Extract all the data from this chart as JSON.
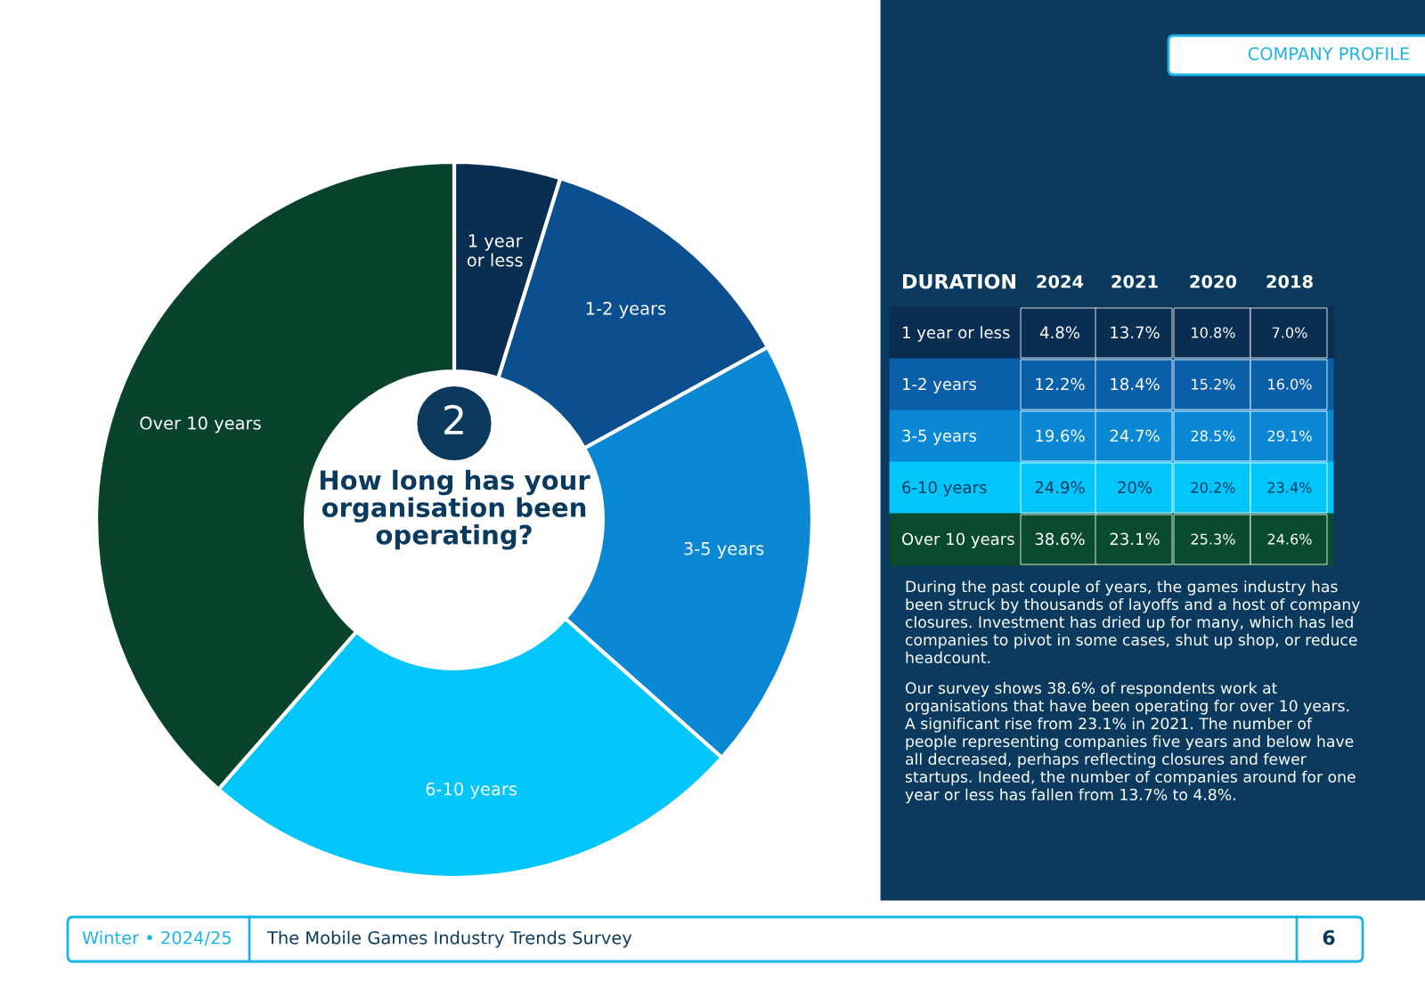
{
  "chart_data": [
    {
      "type": "donut",
      "title": "How long has your organisation been operating?",
      "subtitle": "2",
      "categories": [
        "1 year\nor less",
        "1-2 years",
        "3-5 years",
        "6-10 years",
        "Over 10 years"
      ],
      "values": [
        4.8,
        12.2,
        19.6,
        24.9,
        38.6
      ],
      "colors": [
        "#0a2d52",
        "#0b4f8f",
        "#0a88d4",
        "#00c6fb",
        "#0a432b"
      ],
      "annotations": [
        "COMPANY PROFILE",
        "Winter • 2024/25",
        "The Mobile Games Industry Trends Survey",
        "6"
      ]
    },
    {
      "type": "other",
      "title": "DURATION",
      "categories": [
        "1 year or less",
        "1-2 years",
        "3-5 years",
        "6-10 years",
        "Over 10 years"
      ],
      "colors": [
        "#0a2d52",
        "#0b5fa8",
        "#0a88d4",
        "#00c6fb",
        "#0a4a2e"
      ],
      "series": [
        {
          "name": "2024",
          "colors": [
            "#0a2d52",
            "#0b5fa8",
            "#0a88d4",
            "#00c6fb",
            "#0a4a2e"
          ],
          "values": [
            4.8,
            12.2,
            19.6,
            24.9,
            38.6
          ],
          "value_labels": [
            "4.8%",
            "12.2%",
            "19.6%",
            "24.9%",
            "38.6%"
          ]
        },
        {
          "name": "2021",
          "colors": [
            "#0a2d52",
            "#0b5fa8",
            "#0a88d4",
            "#00c6fb",
            "#0a4a2e"
          ],
          "values": [
            13.7,
            18.4,
            24.7,
            20,
            23.1
          ],
          "value_labels": [
            "13.7%",
            "18.4%",
            "24.7%",
            "20%",
            "23.1%"
          ]
        },
        {
          "name": "2020",
          "colors": [
            "#0a2d52",
            "#0b5fa8",
            "#0a88d4",
            "#00c6fb",
            "#0a4a2e"
          ],
          "values": [
            10.8,
            15.2,
            28.5,
            20.2,
            25.3
          ],
          "value_labels": [
            "10.8%",
            "15.2%",
            "28.5%",
            "20.2%",
            "25.3%"
          ]
        },
        {
          "name": "2018",
          "colors": [
            "#0a2d52",
            "#0b5fa8",
            "#0a88d4",
            "#00c6fb",
            "#0a4a2e"
          ],
          "values": [
            7.0,
            16.0,
            29.1,
            23.4,
            24.6
          ],
          "value_labels": [
            "7.0%",
            "16.0%",
            "29.1%",
            "23.4%",
            "24.6%"
          ]
        }
      ],
      "annotations": [
        "During the past couple of years, the games industry has been struck by thousands of layoffs and a host of company closures. Investment has dried up for many, which has led companies to pivot in some cases, shut up shop, or reduce headcount.",
        "Our survey shows 38.6% of respondents work at organisations that have been operating for over 10 years. A significant rise from 23.1% in 2021. The number of people representing companies five years and below have all decreased, perhaps reflecting closures and fewer startups. Indeed, the number of companies around for one year or less has fallen from 13.7% to 4.8%."
      ]
    }
  ]
}
